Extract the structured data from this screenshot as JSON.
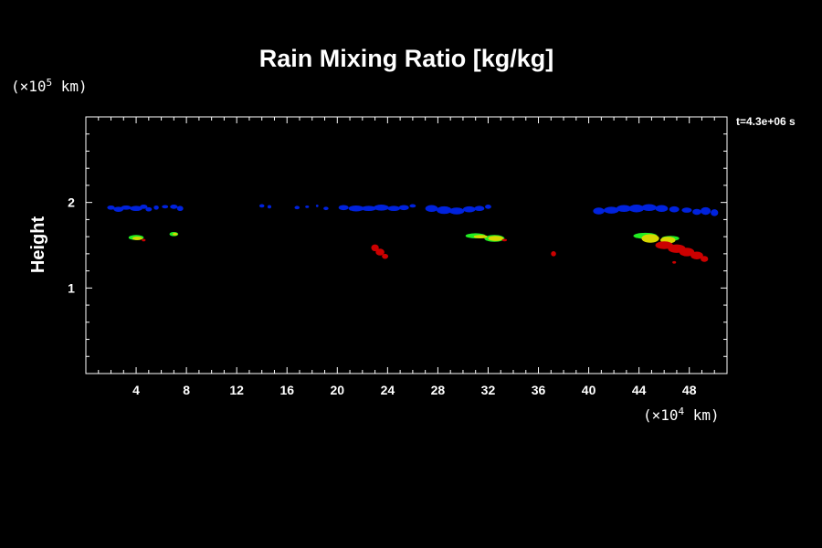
{
  "chart_data": {
    "type": "heatmap",
    "title": "Rain Mixing Ratio [kg/kg]",
    "ylabel": "Height",
    "xlabel": "",
    "x_units_base": "(×10",
    "x_units_exp": "4",
    "x_units_tail": " km)",
    "y_units_base": "(×10",
    "y_units_exp": "5",
    "y_units_tail": " km)",
    "time_label": "t=4.3e+06 s",
    "xlim": [
      0,
      51
    ],
    "ylim": [
      0,
      3
    ],
    "x_ticks": [
      4,
      8,
      12,
      16,
      20,
      24,
      28,
      32,
      36,
      40,
      44,
      48
    ],
    "y_ticks": [
      1,
      2
    ],
    "x_minor_step": 1,
    "y_minor_step": 0.2,
    "grid": false,
    "colors": {
      "blue": "#0022dd",
      "green": "#22ee22",
      "yellow": "#d8d800",
      "red": "#cc0000"
    },
    "regions": [
      {
        "x": [
          2.0,
          2.6,
          3.2,
          4.0,
          4.6,
          5.0
        ],
        "y": [
          1.94,
          1.92,
          1.94,
          1.93,
          1.95,
          1.92
        ],
        "w": [
          0.6,
          0.8,
          0.8,
          1.0,
          0.6,
          0.5
        ],
        "h": [
          0.05,
          0.06,
          0.05,
          0.06,
          0.05,
          0.05
        ],
        "color": "blue"
      },
      {
        "x": [
          5.6,
          6.3,
          7.0,
          7.5
        ],
        "y": [
          1.94,
          1.95,
          1.95,
          1.93
        ],
        "w": [
          0.4,
          0.5,
          0.6,
          0.5
        ],
        "h": [
          0.05,
          0.04,
          0.05,
          0.06
        ],
        "color": "blue"
      },
      {
        "x": [
          14.0,
          14.6
        ],
        "y": [
          1.96,
          1.95
        ],
        "w": [
          0.4,
          0.3
        ],
        "h": [
          0.04,
          0.04
        ],
        "color": "blue"
      },
      {
        "x": [
          16.8,
          17.6,
          18.4,
          19.1
        ],
        "y": [
          1.94,
          1.95,
          1.96,
          1.93
        ],
        "w": [
          0.4,
          0.3,
          0.2,
          0.4
        ],
        "h": [
          0.04,
          0.03,
          0.03,
          0.04
        ],
        "color": "blue"
      },
      {
        "x": [
          20.5,
          21.5,
          22.5,
          23.5,
          24.5,
          25.3,
          26.0
        ],
        "y": [
          1.94,
          1.93,
          1.93,
          1.94,
          1.93,
          1.94,
          1.96
        ],
        "w": [
          0.8,
          1.2,
          1.2,
          1.2,
          1.0,
          0.8,
          0.5
        ],
        "h": [
          0.06,
          0.07,
          0.06,
          0.07,
          0.06,
          0.06,
          0.04
        ],
        "color": "blue"
      },
      {
        "x": [
          27.5,
          28.5,
          29.5,
          30.5,
          31.3,
          32.0
        ],
        "y": [
          1.93,
          1.91,
          1.9,
          1.92,
          1.93,
          1.95
        ],
        "w": [
          1.0,
          1.2,
          1.2,
          1.0,
          0.8,
          0.5
        ],
        "h": [
          0.08,
          0.09,
          0.08,
          0.07,
          0.06,
          0.05
        ],
        "color": "blue"
      },
      {
        "x": [
          40.8,
          41.8,
          42.8,
          43.8,
          44.8,
          45.8,
          46.8
        ],
        "y": [
          1.9,
          1.91,
          1.93,
          1.93,
          1.94,
          1.93,
          1.92
        ],
        "w": [
          0.9,
          1.2,
          1.2,
          1.2,
          1.2,
          1.0,
          0.8
        ],
        "h": [
          0.08,
          0.08,
          0.08,
          0.09,
          0.08,
          0.08,
          0.07
        ],
        "color": "blue"
      },
      {
        "x": [
          47.8,
          48.6,
          49.3,
          50.0
        ],
        "y": [
          1.91,
          1.89,
          1.9,
          1.88
        ],
        "w": [
          0.8,
          0.7,
          0.8,
          0.6
        ],
        "h": [
          0.06,
          0.07,
          0.09,
          0.08
        ],
        "color": "blue"
      },
      {
        "x": [
          4.0
        ],
        "y": [
          1.59
        ],
        "w": [
          1.2
        ],
        "h": [
          0.06
        ],
        "color": "green"
      },
      {
        "x": [
          4.1
        ],
        "y": [
          1.58
        ],
        "w": [
          0.8
        ],
        "h": [
          0.04
        ],
        "color": "yellow"
      },
      {
        "x": [
          4.6
        ],
        "y": [
          1.56
        ],
        "w": [
          0.3
        ],
        "h": [
          0.03
        ],
        "color": "red"
      },
      {
        "x": [
          7.0
        ],
        "y": [
          1.63
        ],
        "w": [
          0.7
        ],
        "h": [
          0.05
        ],
        "color": "green"
      },
      {
        "x": [
          7.1
        ],
        "y": [
          1.63
        ],
        "w": [
          0.4
        ],
        "h": [
          0.03
        ],
        "color": "yellow"
      },
      {
        "x": [
          23.0,
          23.4,
          23.8
        ],
        "y": [
          1.47,
          1.42,
          1.37
        ],
        "w": [
          0.6,
          0.7,
          0.5
        ],
        "h": [
          0.08,
          0.08,
          0.06
        ],
        "color": "red"
      },
      {
        "x": [
          31.0,
          32.5
        ],
        "y": [
          1.61,
          1.58
        ],
        "w": [
          1.6,
          1.6
        ],
        "h": [
          0.06,
          0.08
        ],
        "color": "green"
      },
      {
        "x": [
          31.4,
          32.6
        ],
        "y": [
          1.6,
          1.58
        ],
        "w": [
          1.1,
          1.2
        ],
        "h": [
          0.04,
          0.06
        ],
        "color": "yellow"
      },
      {
        "x": [
          33.3
        ],
        "y": [
          1.56
        ],
        "w": [
          0.4
        ],
        "h": [
          0.03
        ],
        "color": "red"
      },
      {
        "x": [
          37.2
        ],
        "y": [
          1.4
        ],
        "w": [
          0.4
        ],
        "h": [
          0.06
        ],
        "color": "red"
      },
      {
        "x": [
          44.5,
          46.5
        ],
        "y": [
          1.61,
          1.58
        ],
        "w": [
          1.9,
          1.4
        ],
        "h": [
          0.07,
          0.06
        ],
        "color": "green"
      },
      {
        "x": [
          44.9,
          46.3
        ],
        "y": [
          1.58,
          1.56
        ],
        "w": [
          1.4,
          1.2
        ],
        "h": [
          0.1,
          0.08
        ],
        "color": "yellow"
      },
      {
        "x": [
          46.0,
          47.0,
          47.8,
          48.6,
          49.2,
          46.8
        ],
        "y": [
          1.5,
          1.46,
          1.42,
          1.38,
          1.34,
          1.3
        ],
        "w": [
          1.4,
          1.4,
          1.2,
          1.0,
          0.6,
          0.3
        ],
        "h": [
          0.09,
          0.1,
          0.1,
          0.09,
          0.07,
          0.03
        ],
        "color": "red"
      }
    ]
  }
}
